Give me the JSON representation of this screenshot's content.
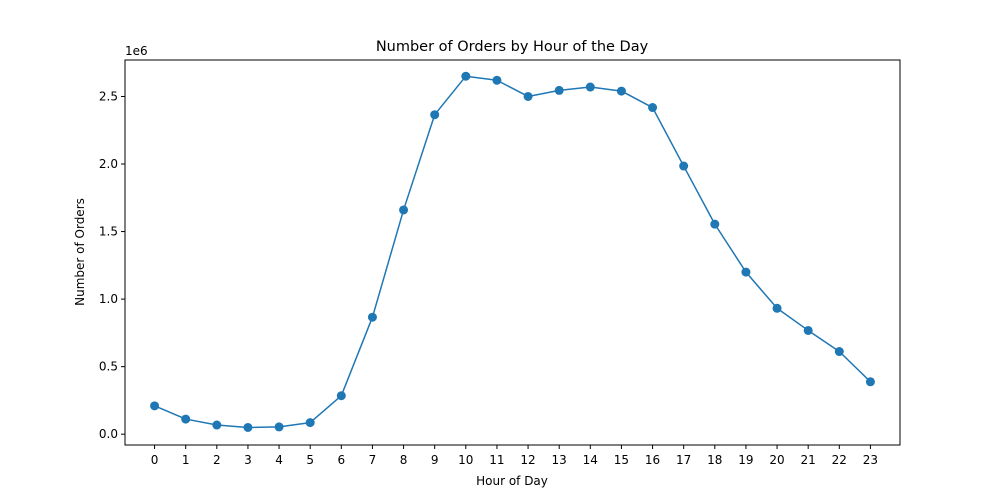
{
  "chart_data": {
    "type": "line",
    "title": "Number of Orders by Hour of the Day",
    "xlabel": "Hour of Day",
    "ylabel": "Number of Orders",
    "y_offset_label": "1e6",
    "x": [
      0,
      1,
      2,
      3,
      4,
      5,
      6,
      7,
      8,
      9,
      10,
      11,
      12,
      13,
      14,
      15,
      16,
      17,
      18,
      19,
      20,
      21,
      22,
      23
    ],
    "x_tick_labels": [
      "0",
      "1",
      "2",
      "3",
      "4",
      "5",
      "6",
      "7",
      "8",
      "9",
      "10",
      "11",
      "12",
      "13",
      "14",
      "15",
      "16",
      "17",
      "18",
      "19",
      "20",
      "21",
      "22",
      "23"
    ],
    "series": [
      {
        "values": [
          210000,
          112000,
          68000,
          50000,
          54000,
          86000,
          285000,
          866000,
          1660000,
          2365000,
          2650000,
          2620000,
          2500000,
          2545000,
          2570000,
          2540000,
          2418000,
          1985000,
          1555000,
          1200000,
          932000,
          768000,
          612000,
          388000
        ],
        "color": "#1f77b4"
      }
    ],
    "y_ticks": [
      0,
      500000,
      1000000,
      1500000,
      2000000,
      2500000
    ],
    "y_tick_labels": [
      "0.0",
      "0.5",
      "1.0",
      "1.5",
      "2.0",
      "2.5"
    ],
    "xlim": [
      -0.95,
      23.95
    ],
    "ylim": [
      -80000,
      2770000
    ],
    "grid": false,
    "legend": "none"
  }
}
